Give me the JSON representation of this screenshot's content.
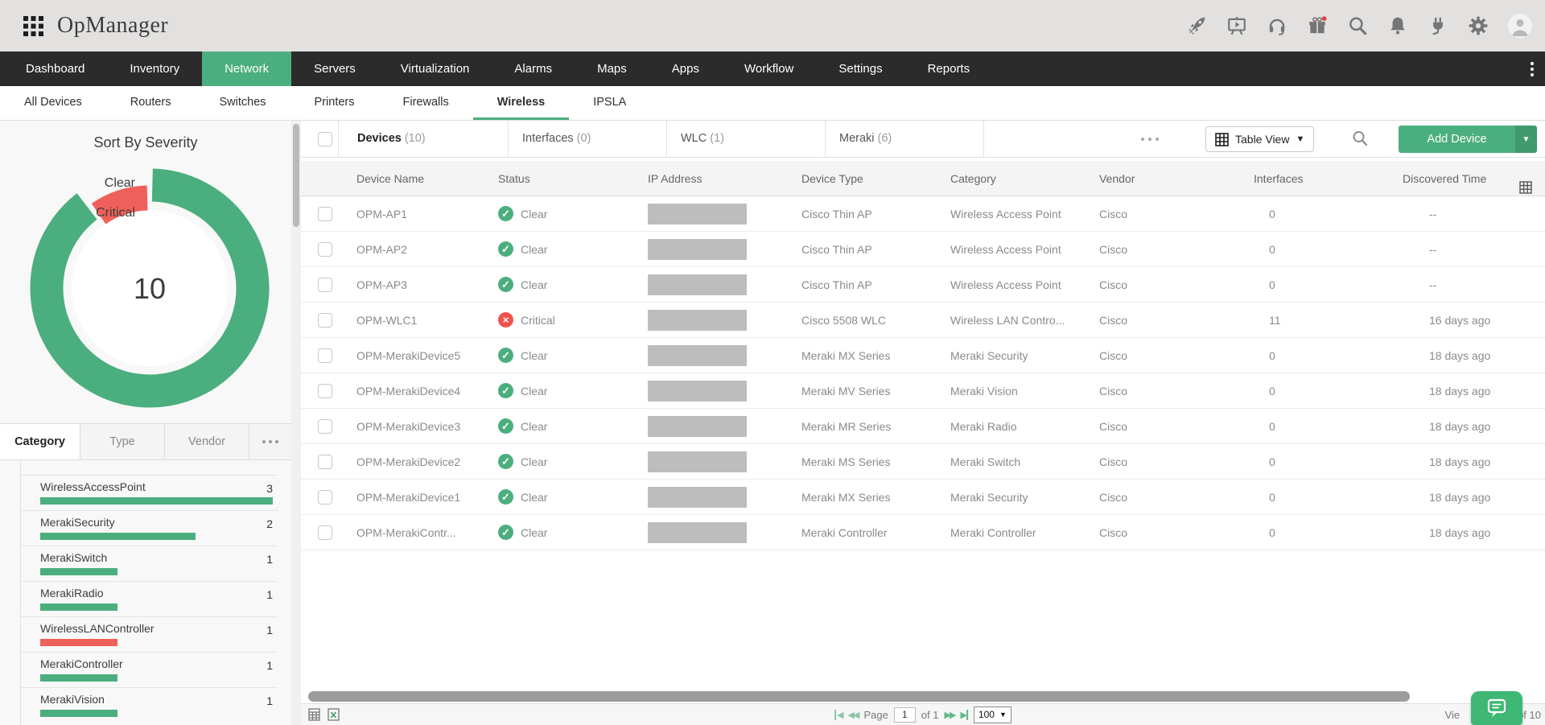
{
  "header": {
    "app_title": "OpManager",
    "icons": [
      "app-grid",
      "rocket",
      "presentation",
      "headset",
      "gift",
      "search",
      "bell",
      "plug",
      "gear",
      "avatar"
    ],
    "notification_dot_color": "#e0403c"
  },
  "nav": {
    "items": [
      "Dashboard",
      "Inventory",
      "Network",
      "Servers",
      "Virtualization",
      "Alarms",
      "Maps",
      "Apps",
      "Workflow",
      "Settings",
      "Reports"
    ],
    "active": "Network"
  },
  "subnav": {
    "items": [
      "All Devices",
      "Routers",
      "Switches",
      "Printers",
      "Firewalls",
      "Wireless",
      "IPSLA"
    ],
    "active": "Wireless"
  },
  "sidebar": {
    "severity": {
      "title": "Sort By Severity",
      "total": "10",
      "slices": [
        {
          "label": "Clear",
          "value": 9,
          "color": "#4bae7e"
        },
        {
          "label": "Critical",
          "value": 1,
          "color": "#f0605a"
        }
      ]
    },
    "tabs": {
      "items": [
        "Category",
        "Type",
        "Vendor"
      ],
      "active": "Category"
    },
    "categories": {
      "max": 3,
      "items": [
        {
          "label": "WirelessAccessPoint",
          "count": 3,
          "color": "#4bae7e"
        },
        {
          "label": "MerakiSecurity",
          "count": 2,
          "color": "#4bae7e"
        },
        {
          "label": "MerakiSwitch",
          "count": 1,
          "color": "#4bae7e"
        },
        {
          "label": "MerakiRadio",
          "count": 1,
          "color": "#4bae7e"
        },
        {
          "label": "WirelessLANController",
          "count": 1,
          "color": "#f0605a"
        },
        {
          "label": "MerakiController",
          "count": 1,
          "color": "#4bae7e"
        },
        {
          "label": "MerakiVision",
          "count": 1,
          "color": "#4bae7e"
        }
      ]
    }
  },
  "content": {
    "tabs": [
      {
        "label": "Devices",
        "count": "(10)",
        "active": true
      },
      {
        "label": "Interfaces",
        "count": "(0)",
        "active": false
      },
      {
        "label": "WLC",
        "count": "(1)",
        "active": false
      },
      {
        "label": "Meraki",
        "count": "(6)",
        "active": false
      }
    ],
    "toolbar": {
      "view_button": "Table View",
      "add_button": "Add Device"
    },
    "table": {
      "columns": [
        "Device Name",
        "Status",
        "IP Address",
        "Device Type",
        "Category",
        "Vendor",
        "Interfaces",
        "Discovered Time"
      ],
      "rows": [
        {
          "name": "OPM-AP1",
          "status": "Clear",
          "status_type": "clear",
          "device_type": "Cisco Thin AP",
          "category": "Wireless Access Point",
          "vendor": "Cisco",
          "interfaces": "0",
          "discovered": "--"
        },
        {
          "name": "OPM-AP2",
          "status": "Clear",
          "status_type": "clear",
          "device_type": "Cisco Thin AP",
          "category": "Wireless Access Point",
          "vendor": "Cisco",
          "interfaces": "0",
          "discovered": "--"
        },
        {
          "name": "OPM-AP3",
          "status": "Clear",
          "status_type": "clear",
          "device_type": "Cisco Thin AP",
          "category": "Wireless Access Point",
          "vendor": "Cisco",
          "interfaces": "0",
          "discovered": "--"
        },
        {
          "name": "OPM-WLC1",
          "status": "Critical",
          "status_type": "critical",
          "device_type": "Cisco 5508 WLC",
          "category": "Wireless LAN Contro...",
          "vendor": "Cisco",
          "interfaces": "11",
          "discovered": "16 days ago"
        },
        {
          "name": "OPM-MerakiDevice5",
          "status": "Clear",
          "status_type": "clear",
          "device_type": "Meraki MX Series",
          "category": "Meraki Security",
          "vendor": "Cisco",
          "interfaces": "0",
          "discovered": "18 days ago"
        },
        {
          "name": "OPM-MerakiDevice4",
          "status": "Clear",
          "status_type": "clear",
          "device_type": "Meraki MV Series",
          "category": "Meraki Vision",
          "vendor": "Cisco",
          "interfaces": "0",
          "discovered": "18 days ago"
        },
        {
          "name": "OPM-MerakiDevice3",
          "status": "Clear",
          "status_type": "clear",
          "device_type": "Meraki MR Series",
          "category": "Meraki Radio",
          "vendor": "Cisco",
          "interfaces": "0",
          "discovered": "18 days ago"
        },
        {
          "name": "OPM-MerakiDevice2",
          "status": "Clear",
          "status_type": "clear",
          "device_type": "Meraki MS Series",
          "category": "Meraki Switch",
          "vendor": "Cisco",
          "interfaces": "0",
          "discovered": "18 days ago"
        },
        {
          "name": "OPM-MerakiDevice1",
          "status": "Clear",
          "status_type": "clear",
          "device_type": "Meraki MX Series",
          "category": "Meraki Security",
          "vendor": "Cisco",
          "interfaces": "0",
          "discovered": "18 days ago"
        },
        {
          "name": "OPM-MerakiContr...",
          "status": "Clear",
          "status_type": "clear",
          "device_type": "Meraki Controller",
          "category": "Meraki Controller",
          "vendor": "Cisco",
          "interfaces": "0",
          "discovered": "18 days ago"
        }
      ]
    },
    "bottom": {
      "page_label": "Page",
      "page_value": "1",
      "of_label": "of 1",
      "page_size": "100",
      "viewing_prefix": "Vie",
      "viewing_suffix": "of 10"
    }
  },
  "colors": {
    "accent_green": "#4bae7e",
    "accent_green_dark": "#3f9a6c",
    "critical_red": "#f0605a",
    "nav_bg": "#2b2b2b",
    "header_bg": "#e3e1e0"
  }
}
